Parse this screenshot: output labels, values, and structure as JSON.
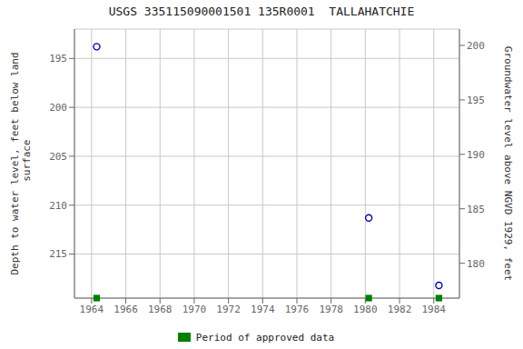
{
  "chart_data": {
    "type": "scatter",
    "title": "USGS 335115090001501 135R0001  TALLAHATCHIE",
    "y_label": "Depth to water level, feet below land\n surface",
    "y2_label": "Groundwater level above NGVD 1929, feet",
    "xlim": [
      1963.0,
      1985.5
    ],
    "xticks": [
      1964,
      1966,
      1968,
      1970,
      1972,
      1974,
      1976,
      1978,
      1980,
      1982,
      1984
    ],
    "ylim": [
      219.5,
      192.0
    ],
    "yticks": [
      195,
      200,
      205,
      210,
      215
    ],
    "y2lim": [
      176.8,
      201.5
    ],
    "y2ticks": [
      200,
      195,
      190,
      185,
      180
    ],
    "grid": true,
    "legend": "bottom",
    "series": [
      {
        "x": [
          1964.3,
          1980.2,
          1984.3
        ],
        "values": [
          193.8,
          211.3,
          218.2
        ],
        "color": "#0000bb",
        "marker": "circle"
      },
      {
        "name": "Period of approved data",
        "x": [
          1964.3,
          1980.2,
          1984.3
        ],
        "color": "#008000",
        "marker": "square"
      }
    ]
  }
}
